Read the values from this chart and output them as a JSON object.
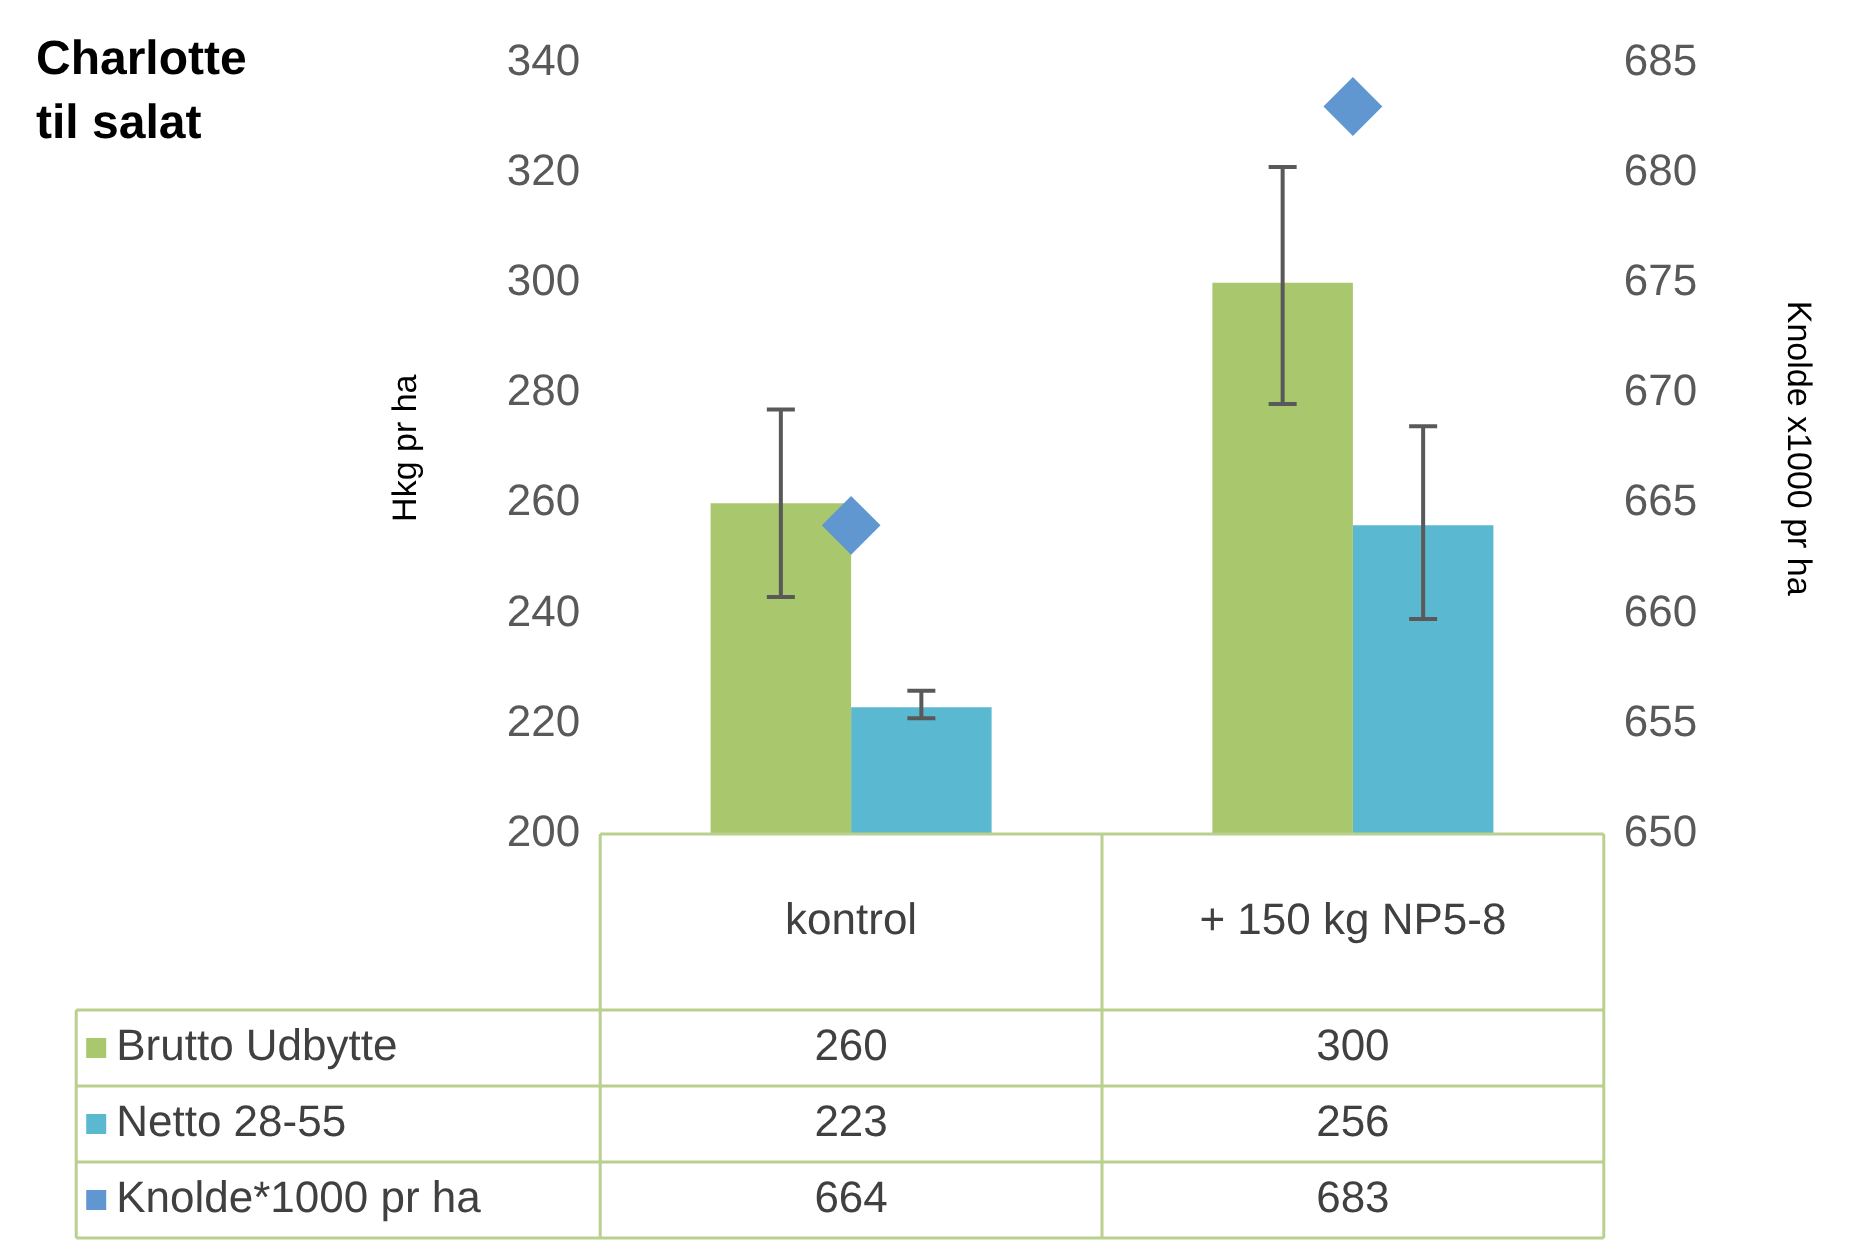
{
  "chart_data": {
    "type": "bar",
    "title": "Charlotte til salat",
    "ylabel": "Hkg pr ha",
    "y2label": "Knolde x1000 pr ha",
    "categories": [
      "kontrol",
      "+ 150 kg NP5-8"
    ],
    "series": [
      {
        "name": "Brutto Udbytte",
        "color": "#a9c76c",
        "values": [
          260,
          300
        ],
        "errors": [
          [
            243,
            277
          ],
          [
            278,
            321
          ]
        ]
      },
      {
        "name": "Netto 28-55",
        "color": "#5ab8d1",
        "values": [
          223,
          256
        ],
        "errors": [
          [
            221,
            226
          ],
          [
            239,
            274
          ]
        ]
      },
      {
        "name": "Knolde*1000 pr ha",
        "type": "scatter",
        "axis": "y2",
        "color": "#6097d0",
        "values": [
          664,
          683
        ]
      }
    ],
    "marker": "diamond",
    "ylim": [
      200,
      340
    ],
    "yticks": [
      200,
      220,
      240,
      260,
      280,
      300,
      320,
      340
    ],
    "y2lim": [
      650,
      685
    ],
    "y2ticks": [
      650,
      655,
      660,
      665,
      670,
      675,
      680,
      685
    ],
    "data_labels": true,
    "grid": false,
    "legend": "bottom left"
  }
}
